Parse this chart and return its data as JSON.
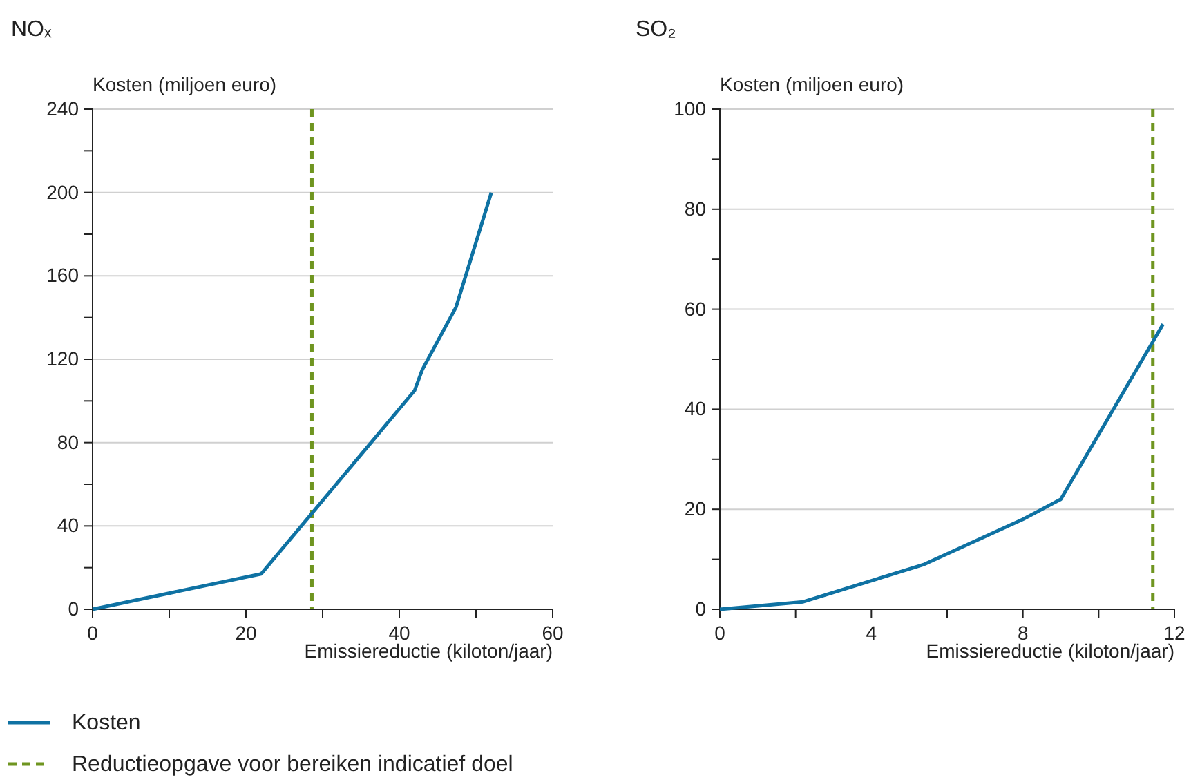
{
  "chart_data": [
    {
      "type": "line",
      "title": "NOₓ",
      "ylabel": "Kosten (miljoen euro)",
      "xlabel": "Emissiereductie (kiloton/jaar)",
      "series": [
        {
          "name": "Kosten",
          "color": "#0f72a3",
          "x": [
            0,
            22,
            42,
            43,
            47.4,
            52
          ],
          "values": [
            0,
            17,
            105,
            115,
            145,
            200
          ]
        }
      ],
      "xlim": [
        0,
        60
      ],
      "xticks": [
        0,
        {
          "value": 10,
          "label": null
        },
        20,
        {
          "value": 30,
          "label": null
        },
        40,
        {
          "value": 50,
          "label": null
        },
        60
      ],
      "ylim": [
        0,
        240
      ],
      "yticks": [
        0,
        {
          "value": 20,
          "label": null
        },
        40,
        {
          "value": 60,
          "label": null
        },
        80,
        {
          "value": 100,
          "label": null
        },
        120,
        {
          "value": 140,
          "label": null
        },
        160,
        {
          "value": 180,
          "label": null
        },
        200,
        {
          "value": 220,
          "label": null
        },
        240
      ],
      "ref_lines": [
        {
          "axis": "x",
          "value": 28.6,
          "label": "Reductieopgave voor bereiken indicatief doel",
          "color": "#6f9520",
          "line_style": "dashed"
        }
      ],
      "grid": "y",
      "legend": "bottom",
      "line_style": "solid",
      "marker": "none"
    },
    {
      "type": "line",
      "title": "SO₂",
      "ylabel": "Kosten (miljoen euro)",
      "xlabel": "Emissiereductie (kiloton/jaar)",
      "series": [
        {
          "color": "#0f72a3",
          "x": [
            0,
            2.2,
            5.4,
            8,
            9,
            11.7
          ],
          "values": [
            0,
            1.5,
            9,
            18,
            22,
            57
          ]
        }
      ],
      "xlim": [
        0,
        12
      ],
      "xticks": [
        0,
        {
          "value": 2,
          "label": null
        },
        4,
        {
          "value": 6,
          "label": null
        },
        8,
        {
          "value": 10,
          "label": null
        },
        12
      ],
      "ylim": [
        0,
        100
      ],
      "yticks": [
        0,
        {
          "value": 10,
          "label": null
        },
        20,
        {
          "value": 30,
          "label": null
        },
        40,
        {
          "value": 50,
          "label": null
        },
        60,
        {
          "value": 70,
          "label": null
        },
        80,
        {
          "value": 90,
          "label": null
        },
        100
      ],
      "ref_lines": [
        {
          "axis": "x",
          "value": 11.43,
          "color": "#6f9520",
          "line_style": "dashed"
        }
      ],
      "grid": "y",
      "line_style": "solid",
      "marker": "none"
    }
  ]
}
